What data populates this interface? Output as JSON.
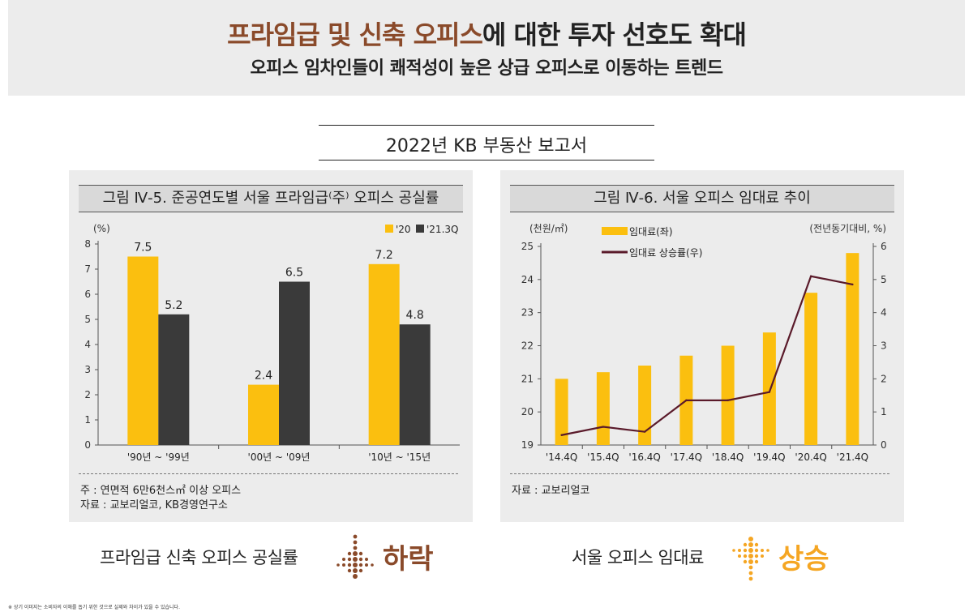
{
  "header": {
    "title_highlight": "프라임급 및 신축 오피스",
    "title_rest": "에 대한 투자 선호도 확대",
    "subtitle": "오피스 임차인들이 쾌적성이 높은 상급 오피스로 이동하는 트렌드"
  },
  "report": {
    "title": "2022년 KB 부동산 보고서"
  },
  "left_panel": {
    "title": "그림 Ⅳ-5. 준공연도별 서울 프라임급⁽주⁾ 오피스 공실률",
    "notes": [
      "주 : 연면적 6만6천스㎡ 이상 오피스",
      "자료 : 교보리얼코, KB경영연구소"
    ],
    "caption": "프라임급 신축 오피스 공실률",
    "trend_word": "하락",
    "trend_color": "#8a4a2a"
  },
  "right_panel": {
    "title": "그림 Ⅳ-6. 서울 오피스 임대료 추이",
    "notes": [
      "자료 : 교보리얼코"
    ],
    "caption": "서울 오피스 임대료",
    "trend_word": "상승",
    "trend_color": "#f5a623"
  },
  "footnote": "※ 상기 이미지는 소비자의 이해를 돕기 위한 것으로 실제와 차이가 있을 수 있습니다.",
  "chart_data": [
    {
      "type": "bar",
      "ylabel": "(%)",
      "ylim": [
        0,
        8
      ],
      "yticks": [
        0,
        1,
        2,
        3,
        4,
        5,
        6,
        7,
        8
      ],
      "categories": [
        "'90년 ~ '99년",
        "'00년 ~ '09년",
        "'10년 ~ '15년"
      ],
      "series": [
        {
          "name": "'20",
          "values": [
            7.5,
            2.4,
            7.2
          ],
          "color": "#fbbf0f"
        },
        {
          "name": "'21.3Q",
          "values": [
            5.2,
            6.5,
            4.8
          ],
          "color": "#3a3a3a"
        }
      ],
      "data_labels": true,
      "legend": "top-right"
    },
    {
      "type": "bar+line",
      "categories": [
        "'14.4Q",
        "'15.4Q",
        "'16.4Q",
        "'17.4Q",
        "'18.4Q",
        "'19.4Q",
        "'20.4Q",
        "'21.4Q"
      ],
      "left_axis": {
        "label": "(천원/㎡)",
        "ylim": [
          19,
          25
        ],
        "ticks": [
          19,
          20,
          21,
          22,
          23,
          24,
          25
        ]
      },
      "right_axis": {
        "label": "(전년동기대비, %)",
        "ylim": [
          0,
          6
        ],
        "ticks": [
          0,
          1,
          2,
          3,
          4,
          5,
          6
        ]
      },
      "series": [
        {
          "name": "임대료(좌)",
          "type": "bar",
          "axis": "left",
          "values": [
            21.0,
            21.2,
            21.4,
            21.7,
            22.0,
            22.4,
            23.6,
            24.8
          ],
          "color": "#fbbf0f"
        },
        {
          "name": "임대료 상승률(우)",
          "type": "line",
          "axis": "right",
          "values": [
            0.3,
            0.55,
            0.4,
            1.35,
            1.35,
            1.6,
            5.1,
            4.85
          ],
          "color": "#5a1a2a"
        }
      ],
      "legend": "top-left"
    }
  ]
}
